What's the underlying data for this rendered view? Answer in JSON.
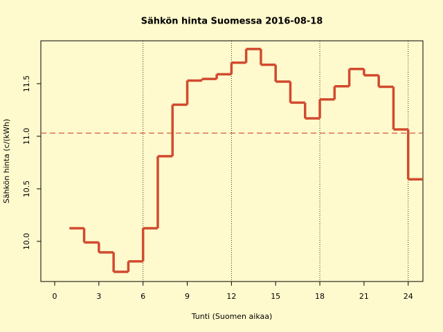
{
  "chart_data": {
    "type": "step",
    "title": "Sähkön hinta Suomessa 2016-08-18",
    "x_label": "Tunti (Suomen aikaa)",
    "y_label": "Sähkön hinta (c/(kWh)",
    "x": [
      1,
      2,
      3,
      4,
      5,
      6,
      7,
      8,
      9,
      10,
      11,
      12,
      13,
      14,
      15,
      16,
      17,
      18,
      19,
      20,
      21,
      22,
      23,
      24
    ],
    "values": [
      10.125,
      9.99,
      9.895,
      9.71,
      9.81,
      10.125,
      10.81,
      11.3,
      11.53,
      11.545,
      11.59,
      11.7,
      11.83,
      11.68,
      11.52,
      11.32,
      11.17,
      11.35,
      11.475,
      11.64,
      11.58,
      11.47,
      11.065,
      10.59
    ],
    "color": "#d14a2f",
    "mean_line": 11.03,
    "vlines": [
      6,
      12,
      18,
      24
    ],
    "xlim": [
      -0.94,
      25.0
    ],
    "ylim": [
      9.618,
      11.908
    ],
    "xticks": [
      0,
      3,
      6,
      9,
      12,
      15,
      18,
      21,
      24
    ],
    "yticks": [
      {
        "value": 10,
        "label": "10.0"
      },
      10.5,
      {
        "value": 11,
        "label": "11.0"
      },
      11.5
    ]
  }
}
